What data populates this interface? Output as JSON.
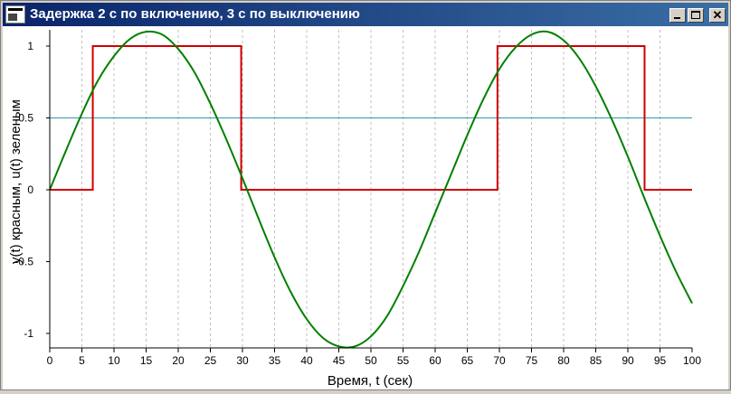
{
  "window": {
    "title": "Задержка 2 с по включению, 3 с по выключению",
    "buttons": {
      "minimize": "minimize-icon",
      "maximize": "maximize-icon",
      "close": "close-icon"
    },
    "close_glyph": "✕"
  },
  "chart_data": {
    "type": "line",
    "xlabel": "Время, t (сек)",
    "ylabel": "y(t) красным, u(t) зеленым",
    "xlim": [
      0,
      100
    ],
    "ylim": [
      -1.1,
      1.1
    ],
    "xticks": [
      0,
      5,
      10,
      15,
      20,
      25,
      30,
      35,
      40,
      45,
      50,
      55,
      60,
      65,
      70,
      75,
      80,
      85,
      90,
      95,
      100
    ],
    "yticks": [
      1,
      0.5,
      0,
      -0.5,
      -1
    ],
    "ytick_labels": [
      "1",
      "0.5",
      "0",
      "-0.5",
      "-1"
    ],
    "grid": "vertical dashed",
    "series": [
      {
        "color": "#008000",
        "x": [
          0,
          2.5,
          5,
          7.5,
          10,
          12.5,
          15,
          17.5,
          20,
          22.5,
          25,
          27.5,
          30,
          32.5,
          35,
          37.5,
          40,
          42.5,
          45,
          47.5,
          50,
          52.5,
          55,
          57.5,
          60,
          62.5,
          65,
          67.5,
          70,
          72.5,
          75,
          77.5,
          80,
          82.5,
          85,
          87.5,
          90,
          92.5,
          95,
          97.5,
          100
        ],
        "values": [
          0,
          0.27,
          0.53,
          0.76,
          0.93,
          1.05,
          1.1,
          1.08,
          0.98,
          0.82,
          0.6,
          0.35,
          0.08,
          -0.2,
          -0.47,
          -0.71,
          -0.9,
          -1.03,
          -1.09,
          -1.09,
          -1.02,
          -0.88,
          -0.67,
          -0.43,
          -0.16,
          0.11,
          0.38,
          0.63,
          0.84,
          0.99,
          1.08,
          1.1,
          1.04,
          0.91,
          0.72,
          0.49,
          0.23,
          -0.05,
          -0.32,
          -0.57,
          -0.79
        ]
      },
      {
        "color": "#d00000",
        "x": [
          0,
          6.7,
          6.7,
          29.8,
          29.8,
          69.7,
          69.7,
          92.6,
          92.6,
          100
        ],
        "values": [
          0,
          0,
          1,
          1,
          0,
          0,
          1,
          1,
          0,
          0
        ]
      },
      {
        "color": "#3399aa",
        "x": [
          0,
          100
        ],
        "values": [
          0.5,
          0.5
        ]
      }
    ]
  }
}
